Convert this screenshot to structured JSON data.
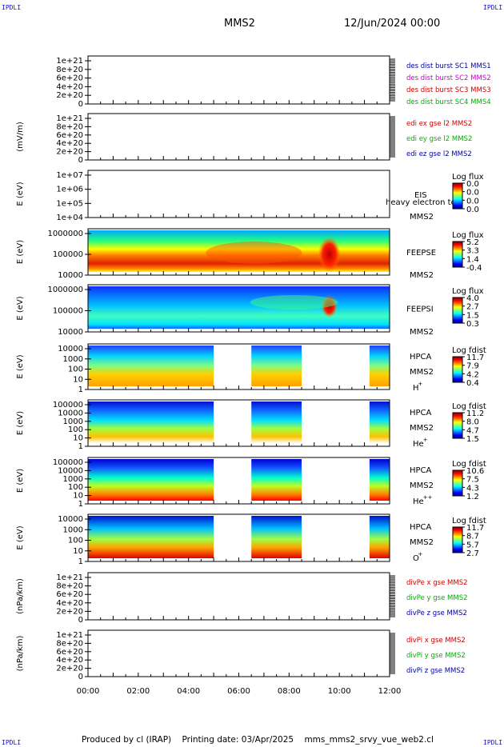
{
  "header": {
    "corner_tl": "IPDLI",
    "corner_tr": "IPDLI",
    "corner_bl": "IPDLI",
    "corner_br": "IPDLI",
    "spacecraft": "MMS2",
    "datetime": "12/Jun/2024 00:00"
  },
  "footer": {
    "produced": "Produced by cl (IRAP)",
    "printing": "Printing date: 03/Apr/2025",
    "file": "mms_mms2_srvy_vue_web2.cl"
  },
  "colors": {
    "mms1": "#0000a0",
    "mms2": "#d000d0",
    "mms3": "#d00000",
    "mms4": "#00b000",
    "x": "#d00000",
    "y": "#00b000",
    "z": "#0000a0"
  },
  "chart_data": [
    {
      "type": "line",
      "id": "des-dist",
      "ylabel": "",
      "ylim": [
        0,
        1.2e+21
      ],
      "yticks": [
        "1e+21",
        "8e+20",
        "6e+20",
        "4e+20",
        "2e+20",
        "0"
      ],
      "legend": [
        "des dist burst SC1 MMS1",
        "des dist burst SC2 MMS2",
        "des dist burst SC3 MMS3",
        "des dist burst SC4 MMS4"
      ],
      "series": []
    },
    {
      "type": "line",
      "id": "edi",
      "ylabel": "(mV/m)",
      "ylim": [
        0,
        1.2e+21
      ],
      "yticks": [
        "1e+21",
        "8e+20",
        "6e+20",
        "4e+20",
        "2e+20",
        "0"
      ],
      "legend": [
        "edi ex gse l2 MMS2",
        "edi ey gse l2 MMS2",
        "edi ez gse l2 MMS2"
      ],
      "series": []
    },
    {
      "type": "heatmap",
      "id": "eis",
      "ylabel": "E (eV)",
      "yscale": "log",
      "ylim": [
        10000,
        10000000
      ],
      "yticks": [
        "1e+07",
        "1e+06",
        "1e+05",
        "1e+04"
      ],
      "instrument": "EIS",
      "spacecraft": "MMS2",
      "overlay": "heavy electron to",
      "colorbar_title": "Log flux",
      "colorbar_ticks": [
        "0.0",
        "0.0",
        "0.0",
        "0.0"
      ],
      "bands": []
    },
    {
      "type": "heatmap",
      "id": "feepse",
      "ylabel": "E (eV)",
      "yscale": "log",
      "ylim": [
        10000,
        1000000
      ],
      "yticks": [
        "1000000",
        "100000",
        "10000"
      ],
      "instrument": "FEEPSE",
      "spacecraft": "MMS2",
      "colorbar_title": "Log flux",
      "colorbar_ticks": [
        "5.2",
        "3.3",
        "1.4",
        "-0.4"
      ],
      "bands": [
        {
          "start": 0,
          "end": 12
        }
      ]
    },
    {
      "type": "heatmap",
      "id": "feepsi",
      "ylabel": "E (eV)",
      "yscale": "log",
      "ylim": [
        10000,
        1000000
      ],
      "yticks": [
        "1000000",
        "100000",
        "10000"
      ],
      "instrument": "FEEPSI",
      "spacecraft": "MMS2",
      "colorbar_title": "Log flux",
      "colorbar_ticks": [
        "4.0",
        "2.7",
        "1.5",
        "0.3"
      ],
      "bands": [
        {
          "start": 0,
          "end": 12
        }
      ]
    },
    {
      "type": "heatmap",
      "id": "hpca-h",
      "ylabel": "E (eV)",
      "yscale": "log",
      "ylim": [
        1,
        20000
      ],
      "yticks": [
        "10000",
        "1000",
        "100",
        "10",
        "1"
      ],
      "instrument": "HPCA",
      "spacecraft": "MMS2",
      "species": "H",
      "charge": "+",
      "colorbar_title": "Log fdist",
      "colorbar_ticks": [
        "11.7",
        "7.9",
        "4.2",
        "0.4"
      ],
      "bands": [
        {
          "start": 0,
          "end": 5.0
        },
        {
          "start": 6.5,
          "end": 8.5
        },
        {
          "start": 11.2,
          "end": 12
        }
      ]
    },
    {
      "type": "heatmap",
      "id": "hpca-he",
      "ylabel": "E (eV)",
      "yscale": "log",
      "ylim": [
        1,
        100000
      ],
      "yticks": [
        "100000",
        "10000",
        "1000",
        "100",
        "10",
        "1"
      ],
      "instrument": "HPCA",
      "spacecraft": "MMS2",
      "species": "He",
      "charge": "+",
      "colorbar_title": "Log fdist",
      "colorbar_ticks": [
        "11.2",
        "8.0",
        "4.7",
        "1.5"
      ],
      "bands": [
        {
          "start": 0,
          "end": 5.0
        },
        {
          "start": 6.5,
          "end": 8.5
        },
        {
          "start": 11.2,
          "end": 12
        }
      ]
    },
    {
      "type": "heatmap",
      "id": "hpca-hepp",
      "ylabel": "E (eV)",
      "yscale": "log",
      "ylim": [
        1,
        100000
      ],
      "yticks": [
        "100000",
        "10000",
        "1000",
        "100",
        "10",
        "1"
      ],
      "instrument": "HPCA",
      "spacecraft": "MMS2",
      "species": "He",
      "charge": "++",
      "colorbar_title": "Log fdist",
      "colorbar_ticks": [
        "10.6",
        "7.5",
        "4.3",
        "1.2"
      ],
      "bands": [
        {
          "start": 0,
          "end": 5.0
        },
        {
          "start": 6.5,
          "end": 8.5
        },
        {
          "start": 11.2,
          "end": 12
        }
      ]
    },
    {
      "type": "heatmap",
      "id": "hpca-o",
      "ylabel": "E (eV)",
      "yscale": "log",
      "ylim": [
        1,
        20000
      ],
      "yticks": [
        "10000",
        "1000",
        "100",
        "10",
        "1"
      ],
      "instrument": "HPCA",
      "spacecraft": "MMS2",
      "species": "O",
      "charge": "+",
      "colorbar_title": "Log fdist",
      "colorbar_ticks": [
        "11.7",
        "8.7",
        "5.7",
        "2.7"
      ],
      "bands": [
        {
          "start": 0,
          "end": 5.0
        },
        {
          "start": 6.5,
          "end": 8.5
        },
        {
          "start": 11.2,
          "end": 12
        }
      ]
    },
    {
      "type": "line",
      "id": "divpe",
      "ylabel": "(nPa/km)",
      "ylim": [
        0,
        1.2e+21
      ],
      "yticks": [
        "1e+21",
        "8e+20",
        "6e+20",
        "4e+20",
        "2e+20",
        "0"
      ],
      "legend": [
        "divPe x gse MMS2",
        "divPe y gse MMS2",
        "divPe z gse MMS2"
      ],
      "series": []
    },
    {
      "type": "line",
      "id": "divpi",
      "ylabel": "(nPa/km)",
      "ylim": [
        0,
        1.2e+21
      ],
      "yticks": [
        "1e+21",
        "8e+20",
        "6e+20",
        "4e+20",
        "2e+20",
        "0"
      ],
      "legend": [
        "divPi x gse MMS2",
        "divPi y gse MMS2",
        "divPi z gse MMS2"
      ],
      "series": []
    }
  ],
  "xaxis": {
    "range": [
      0,
      12
    ],
    "ticks": [
      {
        "v": 0,
        "label": "00:00"
      },
      {
        "v": 2,
        "label": "02:00"
      },
      {
        "v": 4,
        "label": "04:00"
      },
      {
        "v": 6,
        "label": "06:00"
      },
      {
        "v": 8,
        "label": "08:00"
      },
      {
        "v": 10,
        "label": "10:00"
      },
      {
        "v": 12,
        "label": "12:00"
      }
    ]
  }
}
